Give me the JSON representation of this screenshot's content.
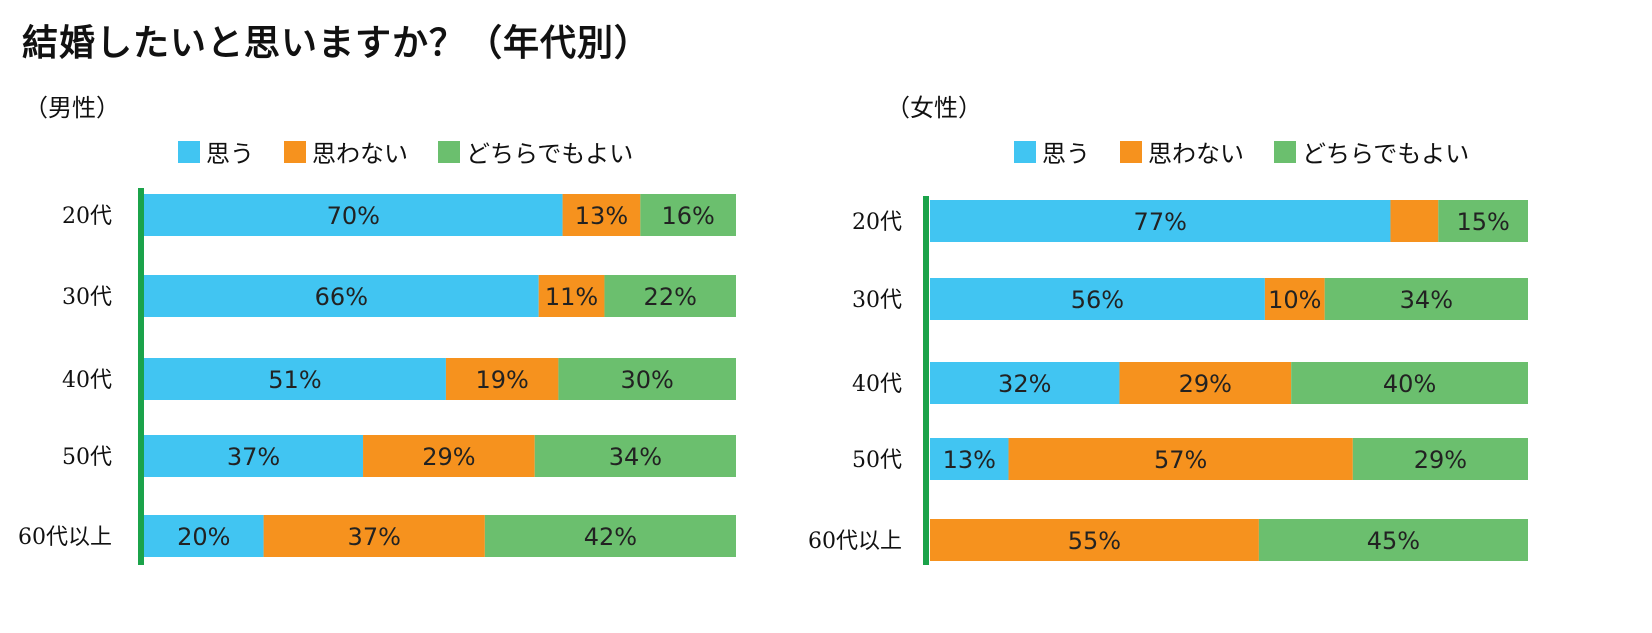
{
  "title": "結婚したいと思いますか？（年代別）",
  "legend": [
    {
      "name": "思う",
      "color": "#41C5F2"
    },
    {
      "name": "思わない",
      "color": "#F6921E"
    },
    {
      "name": "どちらでもよい",
      "color": "#6BBF6E"
    }
  ],
  "axis_color": "#1BA34A",
  "chart_data": [
    {
      "type": "bar",
      "stacked": true,
      "orientation": "horizontal",
      "title": "（男性）",
      "categories": [
        "20代",
        "30代",
        "40代",
        "50代",
        "60代以上"
      ],
      "series": [
        {
          "name": "思う",
          "values": [
            70,
            66,
            51,
            37,
            20
          ],
          "labels": [
            "70%",
            "66%",
            "51%",
            "37%",
            "20%"
          ]
        },
        {
          "name": "思わない",
          "values": [
            13,
            11,
            19,
            29,
            37
          ],
          "labels": [
            "13%",
            "11%",
            "19%",
            "29%",
            "37%"
          ]
        },
        {
          "name": "どちらでもよい",
          "values": [
            16,
            22,
            30,
            34,
            42
          ],
          "labels": [
            "16%",
            "22%",
            "30%",
            "34%",
            "42%"
          ]
        }
      ],
      "xlim": [
        0,
        100
      ]
    },
    {
      "type": "bar",
      "stacked": true,
      "orientation": "horizontal",
      "title": "（女性）",
      "categories": [
        "20代",
        "30代",
        "40代",
        "50代",
        "60代以上"
      ],
      "series": [
        {
          "name": "思う",
          "values": [
            77,
            56,
            32,
            13,
            0
          ],
          "labels": [
            "77%",
            "56%",
            "32%",
            "13%",
            ""
          ]
        },
        {
          "name": "思わない",
          "values": [
            8,
            10,
            29,
            57,
            55
          ],
          "labels": [
            "",
            "10%",
            "29%",
            "57%",
            "55%"
          ]
        },
        {
          "name": "どちらでもよい",
          "values": [
            15,
            34,
            40,
            29,
            45
          ],
          "labels": [
            "15%",
            "34%",
            "40%",
            "29%",
            "45%"
          ]
        }
      ],
      "xlim": [
        0,
        100
      ]
    }
  ]
}
